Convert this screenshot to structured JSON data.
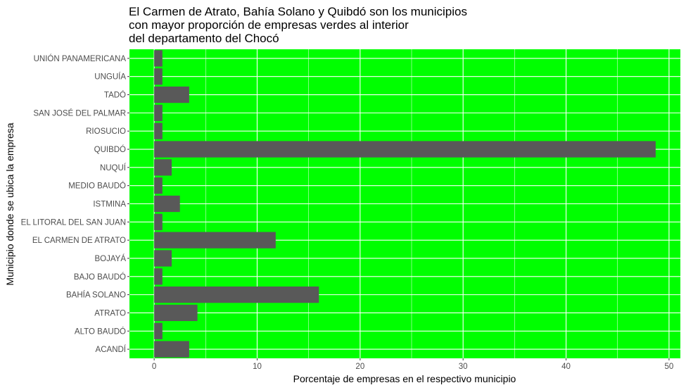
{
  "chart_data": {
    "type": "bar",
    "orientation": "horizontal",
    "title": "El Carmen de Atrato, Bahía Solano y Quibdó son los municipios\ncon mayor proporción de empresas verdes al interior\ndel departamento del Chocó",
    "xlabel": "Porcentaje de empresas en el respectivo municipio",
    "ylabel": "Municipio donde se ubica la empresa",
    "categories": [
      "ACANDÍ",
      "ALTO BAUDÓ",
      "ATRATO",
      "BAHÍA SOLANO",
      "BAJO BAUDÓ",
      "BOJAYÁ",
      "EL CARMEN DE ATRATO",
      "EL LITORAL DEL SAN JUAN",
      "ISTMINA",
      "MEDIO BAUDÓ",
      "NUQUÍ",
      "QUIBDÓ",
      "RIOSUCIO",
      "SAN JOSÉ DEL PALMAR",
      "TADÓ",
      "UNGUÍA",
      "UNIÓN PANAMERICANA"
    ],
    "values": [
      3.4,
      0.8,
      4.2,
      16.0,
      0.8,
      1.7,
      11.8,
      0.8,
      2.5,
      0.8,
      1.7,
      48.7,
      0.8,
      0.8,
      3.4,
      0.8,
      0.8
    ],
    "xlim": [
      -2.4,
      51.1
    ],
    "xticks": [
      0,
      10,
      20,
      30,
      40,
      50
    ],
    "grid": true,
    "colors": {
      "panel": "#00ff00",
      "bar": "#595959",
      "grid": "#ffffff"
    }
  }
}
